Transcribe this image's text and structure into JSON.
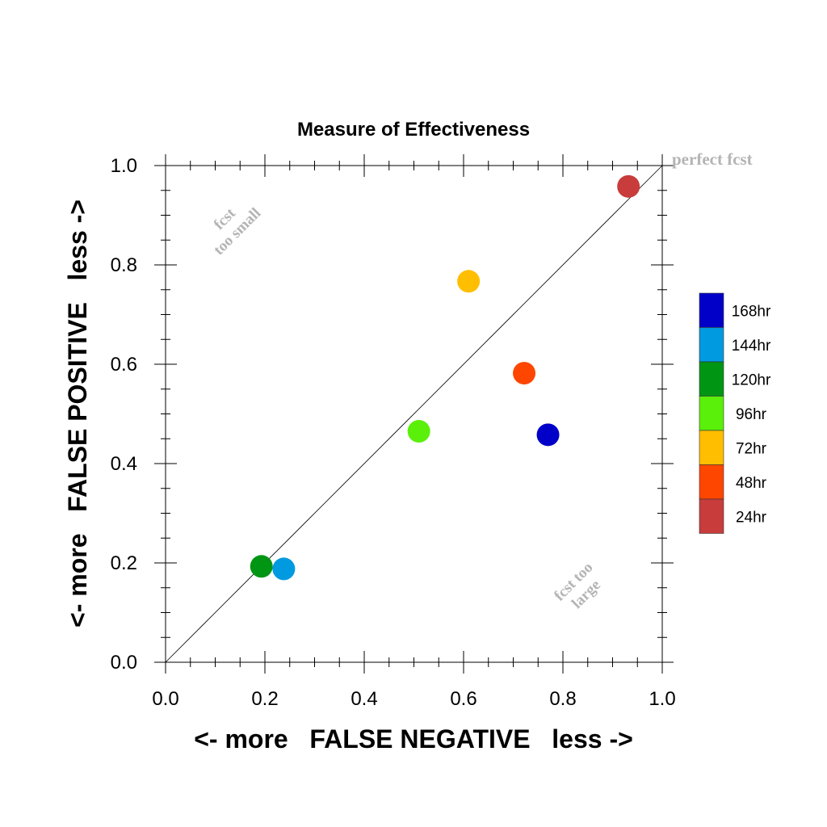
{
  "chart_data": {
    "type": "scatter",
    "title": "Measure of Effectiveness",
    "xlabel": "<- more   FALSE NEGATIVE   less ->",
    "ylabel": "<- more   FALSE POSITIVE   less ->",
    "xlim": [
      0.0,
      1.0
    ],
    "ylim": [
      0.0,
      1.0
    ],
    "x_ticks": [
      "0.0",
      "0.2",
      "0.4",
      "0.6",
      "0.8",
      "1.0"
    ],
    "y_ticks": [
      "0.0",
      "0.2",
      "0.4",
      "0.6",
      "0.8",
      "1.0"
    ],
    "grid": false,
    "diagonal_line": true,
    "annotations": {
      "top_left": [
        "fcst",
        "too small"
      ],
      "bottom_right": [
        "fcst too",
        "large"
      ],
      "corner": "perfect fcst"
    },
    "annotation_color": "#b4b4b4",
    "legend_position": "right",
    "series": [
      {
        "name": "168hr",
        "color": "#0000c8",
        "x": 0.77,
        "y": 0.458
      },
      {
        "name": "144hr",
        "color": "#009ae0",
        "x": 0.238,
        "y": 0.188
      },
      {
        "name": "120hr",
        "color": "#009614",
        "x": 0.193,
        "y": 0.193
      },
      {
        "name": "96hr",
        "color": "#5af00a",
        "x": 0.51,
        "y": 0.465
      },
      {
        "name": "72hr",
        "color": "#ffbe00",
        "x": 0.61,
        "y": 0.767
      },
      {
        "name": "48hr",
        "color": "#ff4600",
        "x": 0.722,
        "y": 0.582
      },
      {
        "name": "24hr",
        "color": "#c83c3c",
        "x": 0.932,
        "y": 0.958
      }
    ]
  }
}
